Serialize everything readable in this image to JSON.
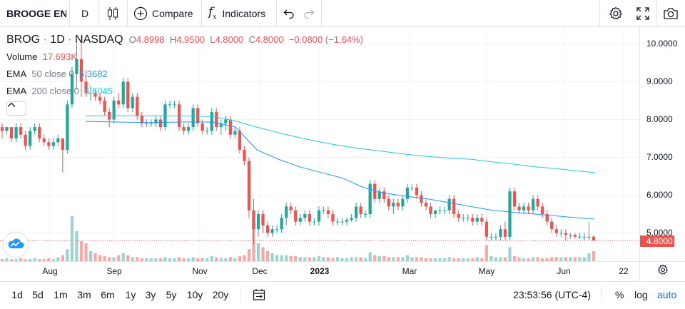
{
  "toolbar": {
    "symbol": "BROOGE EN",
    "interval": "D",
    "compare_label": "Compare",
    "indicators_label": "Indicators",
    "fx_glyph": "f",
    "fx_sub": "x"
  },
  "legend": {
    "ticker": "BROG",
    "sep1": "·",
    "timeframe": "1D",
    "sep2": "·",
    "exchange": "NASDAQ",
    "o_label": "O",
    "o_value": "4.8998",
    "h_label": "H",
    "h_value": "4.9500",
    "l_label": "L",
    "l_value": "4.8000",
    "c_label": "C",
    "c_value": "4.8000",
    "change": "−0.0800 (−1.64%)",
    "volume_label": "Volume",
    "volume_value": "17.693K",
    "ema50_label": "EMA",
    "ema50_params": "50 close 0",
    "ema50_value": "5.3682",
    "ema200_label": "EMA",
    "ema200_params": "200 close 0",
    "ema200_value": "6.6045"
  },
  "price_axis": {
    "ticks": [
      "10.0000",
      "9.0000",
      "8.0000",
      "7.0000",
      "6.0000",
      "5.0000"
    ],
    "last_price": "4.8000"
  },
  "time_axis": {
    "labels": [
      "Aug",
      "Sep",
      "Nov",
      "Dec",
      "2023",
      "Mar",
      "May",
      "Jun",
      "22"
    ]
  },
  "bottom": {
    "ranges": [
      "1d",
      "5d",
      "1m",
      "3m",
      "6m",
      "1y",
      "3y",
      "5y",
      "10y",
      "20y"
    ],
    "clock": "23:53:56 (UTC-4)",
    "percent_label": "%",
    "log_label": "log",
    "auto_label": "auto"
  },
  "colors": {
    "up": "#26a69a",
    "down": "#ef5350",
    "ema50": "#2196f3",
    "ema200": "#26c6da",
    "accent": "#2962ff"
  },
  "chart_data": {
    "type": "candlestick",
    "ylim": [
      4.5,
      10.3
    ],
    "price_ticks": [
      10,
      9,
      8,
      7,
      6,
      5
    ],
    "last_price": 4.8,
    "candles": [
      [
        7.8,
        7.9,
        7.5,
        7.7
      ],
      [
        7.7,
        7.8,
        7.6,
        7.8
      ],
      [
        7.8,
        7.8,
        7.4,
        7.5
      ],
      [
        7.5,
        7.9,
        7.4,
        7.8
      ],
      [
        7.8,
        7.9,
        7.5,
        7.6
      ],
      [
        7.6,
        7.7,
        7.2,
        7.3
      ],
      [
        7.3,
        7.8,
        7.2,
        7.7
      ],
      [
        7.7,
        7.9,
        7.6,
        7.8
      ],
      [
        7.8,
        7.9,
        7.4,
        7.5
      ],
      [
        7.5,
        7.6,
        7.3,
        7.4
      ],
      [
        7.4,
        7.5,
        7.2,
        7.3
      ],
      [
        7.3,
        7.5,
        7.2,
        7.4
      ],
      [
        7.4,
        7.6,
        7.3,
        7.5
      ],
      [
        7.5,
        7.5,
        6.6,
        7.2
      ],
      [
        7.2,
        8.5,
        7.1,
        8.4
      ],
      [
        8.4,
        9.4,
        8.3,
        9.2
      ],
      [
        9.2,
        10.0,
        8.8,
        9.6
      ],
      [
        9.6,
        10.2,
        8.6,
        9.0
      ],
      [
        9.0,
        9.3,
        8.6,
        8.7
      ],
      [
        8.7,
        8.9,
        8.5,
        8.7
      ],
      [
        8.7,
        8.8,
        8.5,
        8.6
      ],
      [
        8.6,
        8.7,
        8.4,
        8.5
      ],
      [
        8.5,
        8.6,
        8.1,
        8.2
      ],
      [
        8.2,
        8.3,
        7.8,
        8.0
      ],
      [
        8.0,
        8.6,
        7.9,
        8.5
      ],
      [
        8.5,
        8.7,
        8.3,
        8.4
      ],
      [
        8.4,
        9.1,
        8.3,
        9.0
      ],
      [
        9.0,
        9.1,
        8.2,
        8.3
      ],
      [
        8.3,
        8.7,
        8.2,
        8.6
      ],
      [
        8.6,
        8.7,
        8.0,
        8.1
      ],
      [
        8.1,
        8.2,
        7.8,
        7.9
      ],
      [
        7.9,
        8.0,
        7.8,
        7.9
      ],
      [
        7.9,
        8.0,
        7.8,
        7.9
      ],
      [
        7.9,
        8.1,
        7.8,
        8.0
      ],
      [
        8.0,
        8.1,
        7.7,
        7.8
      ],
      [
        7.8,
        8.5,
        7.7,
        8.4
      ],
      [
        8.4,
        8.5,
        8.3,
        8.4
      ],
      [
        8.4,
        8.5,
        8.3,
        8.4
      ],
      [
        8.4,
        8.5,
        7.7,
        7.8
      ],
      [
        7.8,
        7.9,
        7.6,
        7.7
      ],
      [
        7.7,
        7.9,
        7.6,
        7.8
      ],
      [
        7.8,
        8.4,
        7.7,
        8.3
      ],
      [
        8.3,
        8.4,
        7.8,
        7.9
      ],
      [
        7.9,
        8.0,
        7.6,
        7.7
      ],
      [
        7.7,
        7.8,
        7.6,
        7.7
      ],
      [
        7.7,
        8.3,
        7.6,
        8.2
      ],
      [
        8.2,
        8.3,
        7.7,
        7.8
      ],
      [
        7.8,
        8.0,
        7.6,
        7.9
      ],
      [
        7.9,
        8.1,
        7.7,
        8.0
      ],
      [
        8.0,
        8.1,
        7.5,
        7.6
      ],
      [
        7.6,
        7.8,
        7.5,
        7.7
      ],
      [
        7.7,
        7.8,
        7.1,
        7.2
      ],
      [
        7.2,
        7.3,
        6.8,
        6.9
      ],
      [
        6.9,
        7.0,
        5.4,
        5.6
      ],
      [
        5.6,
        5.9,
        4.7,
        5.1
      ],
      [
        5.1,
        5.6,
        4.9,
        5.5
      ],
      [
        5.5,
        5.6,
        5.0,
        5.2
      ],
      [
        5.2,
        5.3,
        4.9,
        5.0
      ],
      [
        5.0,
        5.2,
        4.9,
        5.1
      ],
      [
        5.1,
        5.2,
        5.0,
        5.1
      ],
      [
        5.1,
        5.5,
        5.0,
        5.4
      ],
      [
        5.4,
        5.8,
        5.2,
        5.7
      ],
      [
        5.7,
        5.8,
        5.5,
        5.6
      ],
      [
        5.6,
        5.7,
        5.2,
        5.3
      ],
      [
        5.3,
        5.5,
        5.2,
        5.4
      ],
      [
        5.4,
        5.6,
        5.3,
        5.5
      ],
      [
        5.5,
        5.6,
        5.2,
        5.3
      ],
      [
        5.3,
        5.4,
        5.2,
        5.3
      ],
      [
        5.3,
        5.7,
        5.2,
        5.6
      ],
      [
        5.6,
        5.7,
        5.5,
        5.6
      ],
      [
        5.6,
        5.7,
        5.4,
        5.5
      ],
      [
        5.5,
        5.6,
        5.2,
        5.3
      ],
      [
        5.3,
        5.4,
        5.2,
        5.3
      ],
      [
        5.3,
        5.4,
        5.2,
        5.3
      ],
      [
        5.3,
        5.4,
        5.2,
        5.35
      ],
      [
        5.35,
        5.5,
        5.3,
        5.4
      ],
      [
        5.4,
        5.8,
        5.3,
        5.7
      ],
      [
        5.7,
        5.8,
        5.4,
        5.5
      ],
      [
        5.5,
        5.6,
        5.4,
        5.5
      ],
      [
        5.5,
        6.4,
        5.4,
        6.3
      ],
      [
        6.3,
        6.4,
        5.8,
        5.9
      ],
      [
        5.9,
        6.2,
        5.8,
        6.1
      ],
      [
        6.1,
        6.2,
        5.8,
        5.9
      ],
      [
        5.9,
        6.0,
        5.6,
        5.7
      ],
      [
        5.7,
        5.9,
        5.5,
        5.8
      ],
      [
        5.8,
        5.9,
        5.6,
        5.7
      ],
      [
        5.7,
        6.0,
        5.6,
        5.9
      ],
      [
        5.9,
        6.3,
        5.8,
        6.2
      ],
      [
        6.2,
        6.3,
        6.1,
        6.2
      ],
      [
        6.2,
        6.3,
        5.9,
        6.0
      ],
      [
        6.0,
        6.1,
        5.7,
        5.8
      ],
      [
        5.8,
        5.9,
        5.6,
        5.7
      ],
      [
        5.7,
        5.8,
        5.4,
        5.5
      ],
      [
        5.5,
        5.6,
        5.4,
        5.6
      ],
      [
        5.6,
        5.7,
        5.5,
        5.6
      ],
      [
        5.6,
        5.7,
        5.5,
        5.6
      ],
      [
        5.6,
        6.0,
        5.5,
        5.9
      ],
      [
        5.9,
        6.0,
        5.4,
        5.5
      ],
      [
        5.5,
        5.6,
        5.3,
        5.4
      ],
      [
        5.4,
        5.5,
        5.3,
        5.4
      ],
      [
        5.4,
        5.5,
        5.3,
        5.4
      ],
      [
        5.4,
        5.5,
        5.2,
        5.3
      ],
      [
        5.3,
        5.5,
        5.2,
        5.4
      ],
      [
        5.4,
        5.5,
        5.2,
        5.3
      ],
      [
        5.3,
        5.4,
        4.8,
        4.9
      ],
      [
        4.9,
        5.0,
        4.8,
        4.9
      ],
      [
        4.9,
        5.0,
        4.8,
        4.9
      ],
      [
        4.9,
        5.2,
        4.8,
        5.1
      ],
      [
        5.1,
        5.3,
        4.8,
        4.9
      ],
      [
        4.9,
        6.2,
        4.8,
        6.1
      ],
      [
        6.1,
        6.2,
        5.6,
        5.7
      ],
      [
        5.7,
        5.8,
        5.5,
        5.6
      ],
      [
        5.6,
        5.8,
        5.5,
        5.7
      ],
      [
        5.7,
        5.8,
        5.5,
        5.6
      ],
      [
        5.6,
        6.0,
        5.5,
        5.9
      ],
      [
        5.9,
        6.0,
        5.6,
        5.7
      ],
      [
        5.7,
        5.8,
        5.4,
        5.5
      ],
      [
        5.5,
        5.6,
        5.2,
        5.3
      ],
      [
        5.3,
        5.4,
        5.0,
        5.1
      ],
      [
        5.1,
        5.2,
        4.9,
        5.0
      ],
      [
        5.0,
        5.1,
        4.9,
        5.0
      ],
      [
        5.0,
        5.1,
        4.8,
        4.95
      ],
      [
        4.95,
        5.0,
        4.85,
        4.95
      ],
      [
        4.95,
        5.0,
        4.85,
        4.9
      ],
      [
        4.9,
        5.0,
        4.85,
        4.9
      ],
      [
        4.9,
        5.0,
        4.8,
        4.9
      ],
      [
        4.9,
        5.3,
        4.8,
        4.9
      ],
      [
        4.8998,
        4.95,
        4.8,
        4.8
      ]
    ],
    "volume": [
      2,
      3,
      2,
      2,
      3,
      2,
      2,
      3,
      2,
      2,
      3,
      2,
      4,
      6,
      12,
      45,
      30,
      20,
      18,
      10,
      8,
      6,
      5,
      4,
      4,
      6,
      8,
      6,
      4,
      4,
      3,
      3,
      3,
      3,
      3,
      4,
      3,
      3,
      4,
      3,
      3,
      4,
      3,
      3,
      3,
      5,
      4,
      3,
      3,
      4,
      3,
      5,
      6,
      12,
      40,
      18,
      14,
      10,
      8,
      6,
      6,
      6,
      5,
      5,
      4,
      4,
      4,
      4,
      5,
      4,
      4,
      3,
      4,
      3,
      3,
      4,
      4,
      4,
      3,
      9,
      6,
      5,
      5,
      4,
      4,
      4,
      4,
      6,
      4,
      4,
      4,
      3,
      3,
      3,
      3,
      3,
      4,
      3,
      3,
      3,
      3,
      3,
      4,
      3,
      16,
      5,
      4,
      4,
      4,
      14,
      5,
      4,
      3,
      3,
      4,
      4,
      3,
      3,
      4,
      4,
      4,
      4,
      4,
      4,
      4,
      4,
      8,
      10
    ],
    "ema50": [
      [
        120,
        7.95
      ],
      [
        150,
        7.94
      ],
      [
        180,
        7.93
      ],
      [
        210,
        7.92
      ],
      [
        240,
        7.93
      ],
      [
        270,
        7.94
      ],
      [
        300,
        7.93
      ],
      [
        330,
        7.8
      ],
      [
        360,
        7.2
      ],
      [
        390,
        6.95
      ],
      [
        420,
        6.75
      ],
      [
        450,
        6.6
      ],
      [
        480,
        6.45
      ],
      [
        510,
        6.2
      ],
      [
        540,
        6.05
      ],
      [
        570,
        5.97
      ],
      [
        600,
        5.9
      ],
      [
        630,
        5.8
      ],
      [
        660,
        5.7
      ],
      [
        690,
        5.6
      ],
      [
        720,
        5.55
      ],
      [
        750,
        5.5
      ],
      [
        780,
        5.45
      ],
      [
        810,
        5.4
      ],
      [
        833,
        5.37
      ]
    ],
    "ema200": [
      [
        120,
        8.1
      ],
      [
        150,
        8.1
      ],
      [
        180,
        8.1
      ],
      [
        210,
        8.1
      ],
      [
        240,
        8.1
      ],
      [
        270,
        8.09
      ],
      [
        300,
        8.08
      ],
      [
        330,
        7.96
      ],
      [
        360,
        7.8
      ],
      [
        390,
        7.65
      ],
      [
        420,
        7.52
      ],
      [
        450,
        7.4
      ],
      [
        480,
        7.3
      ],
      [
        510,
        7.22
      ],
      [
        540,
        7.15
      ],
      [
        570,
        7.08
      ],
      [
        600,
        7.02
      ],
      [
        630,
        6.98
      ],
      [
        660,
        6.95
      ],
      [
        690,
        6.88
      ],
      [
        720,
        6.82
      ],
      [
        750,
        6.75
      ],
      [
        780,
        6.7
      ],
      [
        810,
        6.64
      ],
      [
        833,
        6.6
      ]
    ]
  }
}
